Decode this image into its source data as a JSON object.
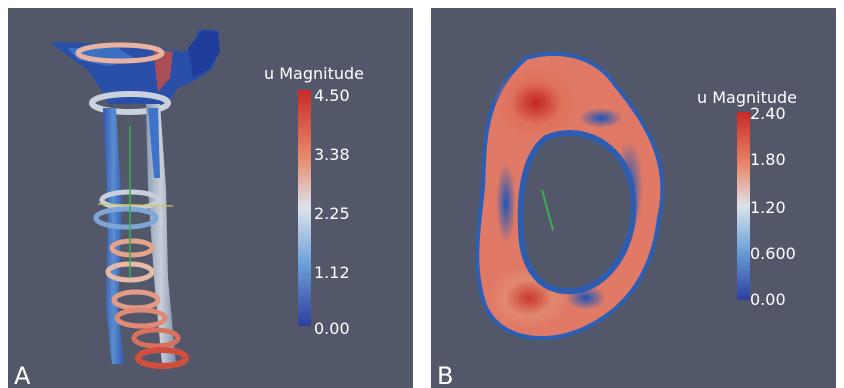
{
  "panels": {
    "a": {
      "letter": "A",
      "colorbar": {
        "title": "u Magnitude",
        "ticks": [
          "4.50",
          "3.38",
          "2.25",
          "1.12",
          "0.00"
        ]
      }
    },
    "b": {
      "letter": "B",
      "colorbar": {
        "title": "u Magnitude",
        "ticks": [
          "2.40",
          "1.80",
          "1.20",
          "0.600",
          "0.00"
        ]
      }
    }
  },
  "colors": {
    "background": "#525869",
    "colormap_low": "#2f3ea0",
    "colormap_mid": "#dde3ea",
    "colormap_high": "#cf2a26"
  }
}
